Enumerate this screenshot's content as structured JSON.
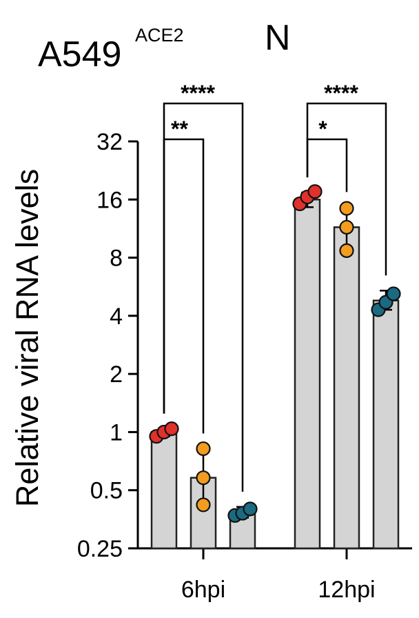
{
  "chart_data": {
    "type": "bar",
    "title": "A549",
    "title_superscript": "ACE2",
    "subtitle": "N",
    "xlabel": "",
    "ylabel": "Relative viral RNA levels",
    "yscale": "log2",
    "ylim": [
      0.25,
      32
    ],
    "yticks": [
      {
        "value": 0.25,
        "label": "0.25"
      },
      {
        "value": 0.5,
        "label": "0.5"
      },
      {
        "value": 1,
        "label": "1"
      },
      {
        "value": 2,
        "label": "2"
      },
      {
        "value": 4,
        "label": "4"
      },
      {
        "value": 8,
        "label": "8"
      },
      {
        "value": 16,
        "label": "16"
      },
      {
        "value": 32,
        "label": "32"
      }
    ],
    "categories": [
      "6hpi",
      "12hpi"
    ],
    "series_colors": [
      "#e0312b",
      "#f39c1f",
      "#1a6a82"
    ],
    "bar_color": "#d4d4d4",
    "groups": [
      {
        "category": "6hpi",
        "bars": [
          {
            "mean": 1.0,
            "sd_low": 0.95,
            "sd_high": 1.04,
            "points": [
              0.95,
              1.0,
              1.04
            ]
          },
          {
            "mean": 0.58,
            "sd_low": 0.43,
            "sd_high": 0.82,
            "points": [
              0.42,
              0.58,
              0.82
            ]
          },
          {
            "mean": 0.38,
            "sd_low": 0.36,
            "sd_high": 0.41,
            "points": [
              0.37,
              0.38,
              0.4
            ]
          }
        ],
        "comparisons": [
          {
            "from": 0,
            "to": 1,
            "label": "**"
          },
          {
            "from": 0,
            "to": 2,
            "label": "****"
          }
        ]
      },
      {
        "category": "12hpi",
        "bars": [
          {
            "mean": 16.0,
            "sd_low": 14.6,
            "sd_high": 17.4,
            "points": [
              15.2,
              16.5,
              17.6
            ]
          },
          {
            "mean": 11.5,
            "sd_low": 8.8,
            "sd_high": 14.6,
            "points": [
              8.7,
              11.5,
              14.4
            ]
          },
          {
            "mean": 4.8,
            "sd_low": 4.3,
            "sd_high": 5.4,
            "points": [
              4.3,
              4.7,
              5.2
            ]
          }
        ],
        "comparisons": [
          {
            "from": 0,
            "to": 1,
            "label": "*"
          },
          {
            "from": 0,
            "to": 2,
            "label": "****"
          }
        ]
      }
    ]
  }
}
